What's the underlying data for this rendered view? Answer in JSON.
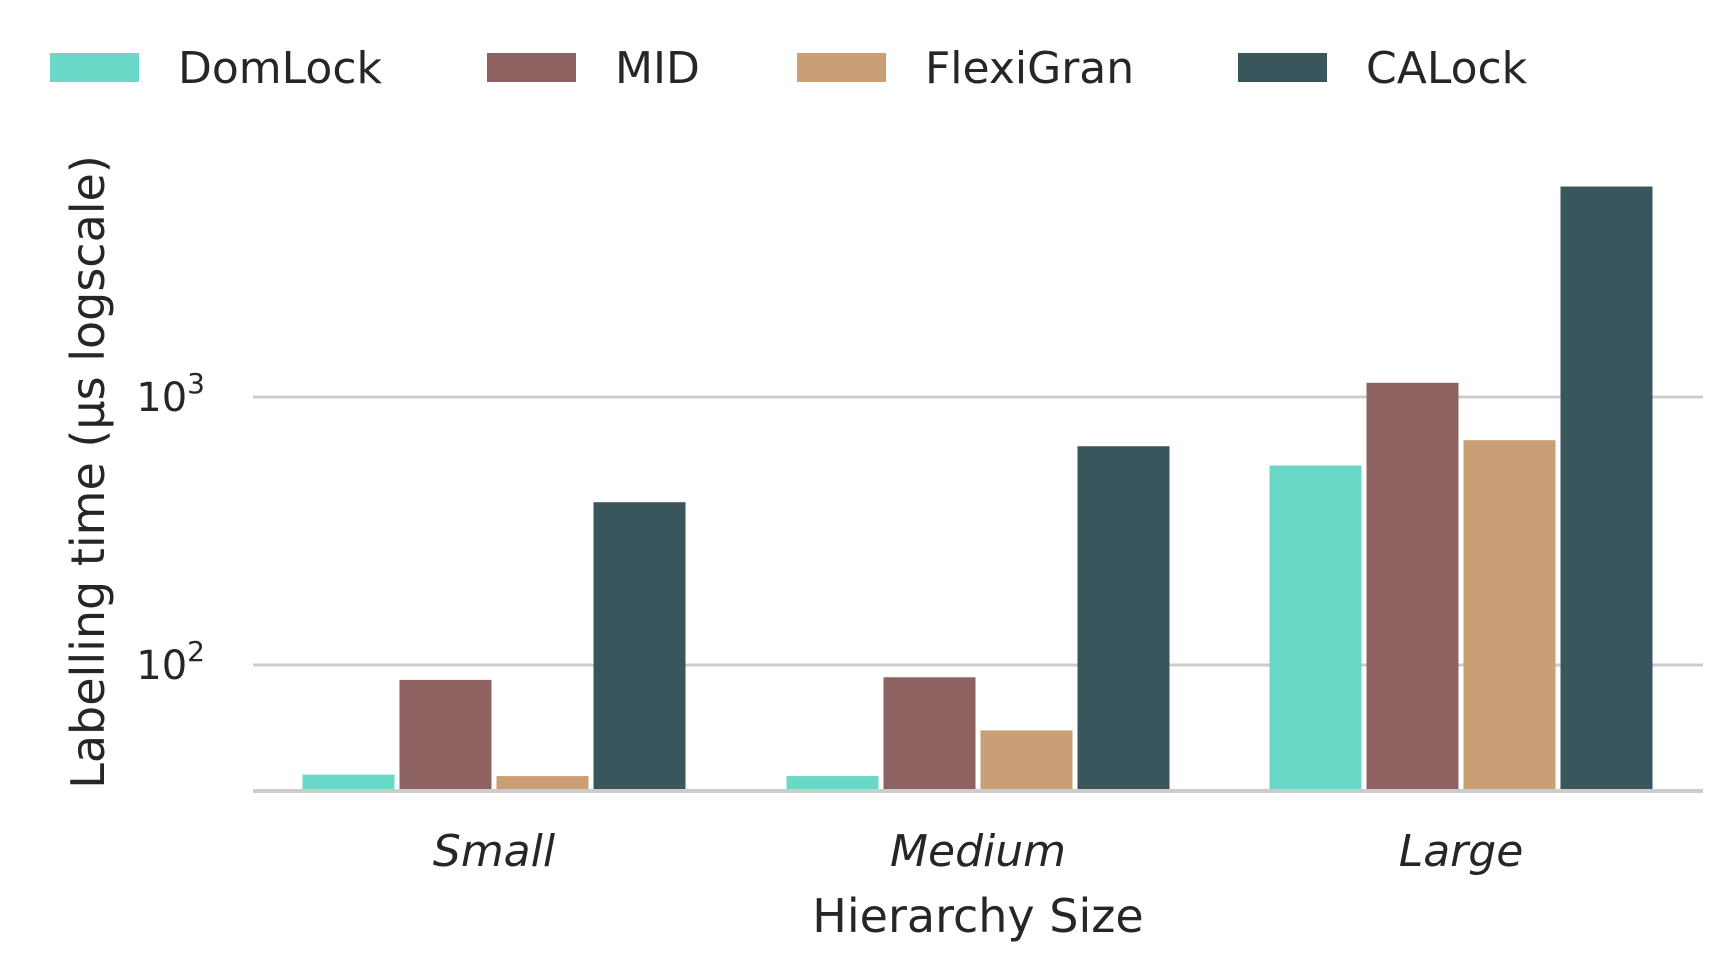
{
  "chart_data": {
    "type": "bar",
    "title": "",
    "xlabel": "Hierarchy Size",
    "ylabel": "Labelling time (μs logscale)",
    "yscale": "log",
    "ylim": [
      34,
      10000
    ],
    "yticks": [
      {
        "value": 100,
        "base": "10",
        "exp": "2"
      },
      {
        "value": 1000,
        "base": "10",
        "exp": "3"
      }
    ],
    "grid": "horizontal",
    "legend": "top",
    "categories": [
      "Small",
      "Medium",
      "Large"
    ],
    "series": [
      {
        "name": "DomLock",
        "color": "#6AD8C7",
        "values": [
          39,
          38.5,
          555
        ]
      },
      {
        "name": "MID",
        "color": "#8E6261",
        "values": [
          88,
          90,
          1130
        ]
      },
      {
        "name": "FlexiGran",
        "color": "#CA9F76",
        "values": [
          38.5,
          57,
          690
        ]
      },
      {
        "name": "CALock",
        "color": "#3A565D",
        "values": [
          405,
          655,
          6100
        ]
      }
    ]
  }
}
